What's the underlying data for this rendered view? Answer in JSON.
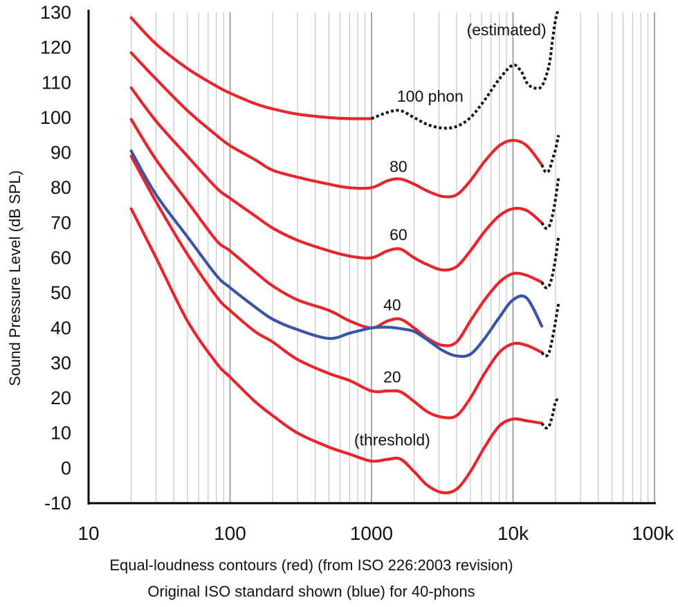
{
  "chart_data": {
    "type": "line",
    "title": "",
    "xlabel": "",
    "ylabel": "Sound Pressure Level (dB SPL)",
    "xscale": "log",
    "xlim": [
      10,
      100000
    ],
    "ylim": [
      -10,
      130
    ],
    "grid": true,
    "x_tick_values": [
      10,
      100,
      1000,
      10000,
      100000
    ],
    "x_tick_labels": [
      "10",
      "100",
      "1000",
      "10k",
      "100k"
    ],
    "y_ticks": [
      130,
      120,
      110,
      100,
      90,
      80,
      70,
      60,
      50,
      40,
      30,
      20,
      10,
      0,
      -10
    ],
    "captions": [
      "Equal-loudness contours (red) (from ISO 226:2003 revision)",
      "Original ISO standard shown (blue) for 40-phons"
    ],
    "colors": {
      "red": "#e8242c",
      "blue": "#3a55a5",
      "dotted": "#111111",
      "grid": "#b9b9b9"
    },
    "series": [
      {
        "name": "threshold",
        "color": "#e8242c",
        "x": [
          20,
          30,
          50,
          80,
          100,
          150,
          200,
          300,
          500,
          700,
          1000,
          1300,
          1600,
          2000,
          2500,
          3200,
          4000,
          5000,
          6300,
          8000,
          10000,
          12500,
          16000
        ],
        "y": [
          74,
          60,
          42,
          30,
          26,
          19,
          15,
          10,
          6,
          4,
          2,
          2.5,
          2.6,
          -1,
          -5,
          -7,
          -6,
          -1,
          6,
          12,
          14,
          13.5,
          12.8
        ]
      },
      {
        "name": "20 phon",
        "color": "#e8242c",
        "x": [
          20,
          30,
          50,
          80,
          100,
          150,
          200,
          300,
          500,
          700,
          1000,
          1300,
          1600,
          2000,
          2500,
          3200,
          4000,
          5000,
          6300,
          8000,
          10000,
          12500,
          16000
        ],
        "y": [
          89,
          76,
          61,
          49,
          45,
          39,
          36,
          31,
          27,
          25,
          22,
          22,
          21.8,
          19,
          16,
          14.5,
          15,
          20,
          27,
          33,
          35.5,
          35,
          33
        ]
      },
      {
        "name": "40 phon",
        "color": "#e8242c",
        "x": [
          20,
          30,
          50,
          80,
          100,
          150,
          200,
          300,
          500,
          700,
          1000,
          1300,
          1600,
          2000,
          2500,
          3200,
          4000,
          5000,
          6300,
          8000,
          10000,
          12500,
          16000
        ],
        "y": [
          99.5,
          88,
          76,
          65,
          62,
          56,
          52,
          48,
          45,
          42,
          40,
          42,
          42.5,
          40,
          37,
          35,
          36,
          42,
          48,
          53,
          55.5,
          55,
          53
        ]
      },
      {
        "name": "60 phon",
        "color": "#e8242c",
        "x": [
          20,
          30,
          50,
          80,
          100,
          150,
          200,
          300,
          500,
          700,
          1000,
          1300,
          1600,
          2000,
          2500,
          3200,
          4000,
          5000,
          6300,
          8000,
          10000,
          12500,
          16000
        ],
        "y": [
          108.5,
          99,
          89,
          80,
          77,
          72,
          68.5,
          65,
          62,
          60.5,
          60,
          62,
          62.5,
          60,
          58,
          56.5,
          57.5,
          62,
          67.5,
          72,
          74,
          73.5,
          70
        ]
      },
      {
        "name": "80 phon",
        "color": "#e8242c",
        "x": [
          20,
          30,
          50,
          80,
          100,
          150,
          200,
          300,
          500,
          700,
          1000,
          1300,
          1600,
          2000,
          2500,
          3200,
          4000,
          5000,
          6300,
          8000,
          10000,
          12500,
          16000
        ],
        "y": [
          118.5,
          111,
          102,
          95,
          92,
          88,
          85,
          83,
          81,
          80,
          80,
          82,
          82.5,
          81,
          79,
          77.5,
          78,
          82,
          87.5,
          92,
          93.5,
          92,
          86.5
        ]
      },
      {
        "name": "100 phon",
        "color": "#e8242c",
        "x": [
          20,
          30,
          50,
          80,
          100,
          150,
          200,
          300,
          500,
          700,
          1000
        ],
        "y": [
          128.5,
          121,
          114,
          109,
          107,
          104,
          102.5,
          101,
          100,
          99.7,
          99.7
        ]
      },
      {
        "name": "100 phon (estimated)",
        "color": "#111111",
        "dashed": true,
        "x": [
          1000,
          1300,
          1600,
          2000,
          2500,
          3200,
          4000,
          5000,
          6300,
          8000,
          10000,
          11500,
          12500,
          14000,
          16000,
          18000,
          19000,
          20000,
          21000
        ],
        "y": [
          99.7,
          101.5,
          102,
          100,
          98,
          97,
          97.5,
          100,
          105,
          111,
          115,
          113,
          110,
          108.5,
          109,
          115,
          122,
          128,
          131
        ]
      },
      {
        "name": "80 phon (estimated)",
        "color": "#111111",
        "dashed": true,
        "x": [
          16000,
          17000,
          18000,
          19000,
          20000,
          21000
        ],
        "y": [
          86.5,
          84.5,
          85,
          88,
          91,
          95
        ]
      },
      {
        "name": "60 phon (estimated)",
        "color": "#111111",
        "dashed": true,
        "x": [
          16000,
          17000,
          18000,
          19000,
          20000,
          21000
        ],
        "y": [
          70,
          68.5,
          69,
          72,
          77,
          83
        ]
      },
      {
        "name": "40 phon (estimated)",
        "color": "#111111",
        "dashed": true,
        "x": [
          16000,
          17000,
          18000,
          19000,
          20000,
          21000
        ],
        "y": [
          53,
          51.5,
          52,
          55,
          60,
          66
        ]
      },
      {
        "name": "20 phon (estimated)",
        "color": "#111111",
        "dashed": true,
        "x": [
          16000,
          17000,
          18000,
          19000,
          20000,
          21000
        ],
        "y": [
          33,
          32,
          33,
          37,
          42,
          47
        ]
      },
      {
        "name": "threshold (estimated)",
        "color": "#111111",
        "dashed": true,
        "x": [
          16000,
          17000,
          18000,
          19000,
          20000,
          21000
        ],
        "y": [
          12.8,
          11.5,
          12,
          15,
          19,
          19.5
        ]
      },
      {
        "name": "40 phon (original ISO)",
        "color": "#3a55a5",
        "x": [
          20,
          30,
          50,
          80,
          100,
          150,
          200,
          300,
          500,
          700,
          1000,
          1300,
          1600,
          2000,
          2500,
          3200,
          4000,
          5000,
          6300,
          8000,
          10000,
          12500,
          16000
        ],
        "y": [
          90.5,
          78,
          66,
          55,
          51.5,
          46,
          42.5,
          39.5,
          37,
          38.5,
          40,
          40.2,
          39.8,
          39,
          36.5,
          33.5,
          32,
          32.5,
          37,
          43,
          48,
          48.5,
          40.5
        ]
      }
    ],
    "annotations": [
      {
        "text": "(estimated)",
        "x": 9000,
        "y": 123.5
      },
      {
        "text": "100 phon",
        "x": 2600,
        "y": 104.5
      },
      {
        "text": "80",
        "x": 1550,
        "y": 84.5
      },
      {
        "text": "60",
        "x": 1550,
        "y": 65
      },
      {
        "text": "40",
        "x": 1400,
        "y": 45
      },
      {
        "text": "20",
        "x": 1400,
        "y": 24.5
      },
      {
        "text": "(threshold)",
        "x": 1400,
        "y": 6.5
      }
    ]
  }
}
